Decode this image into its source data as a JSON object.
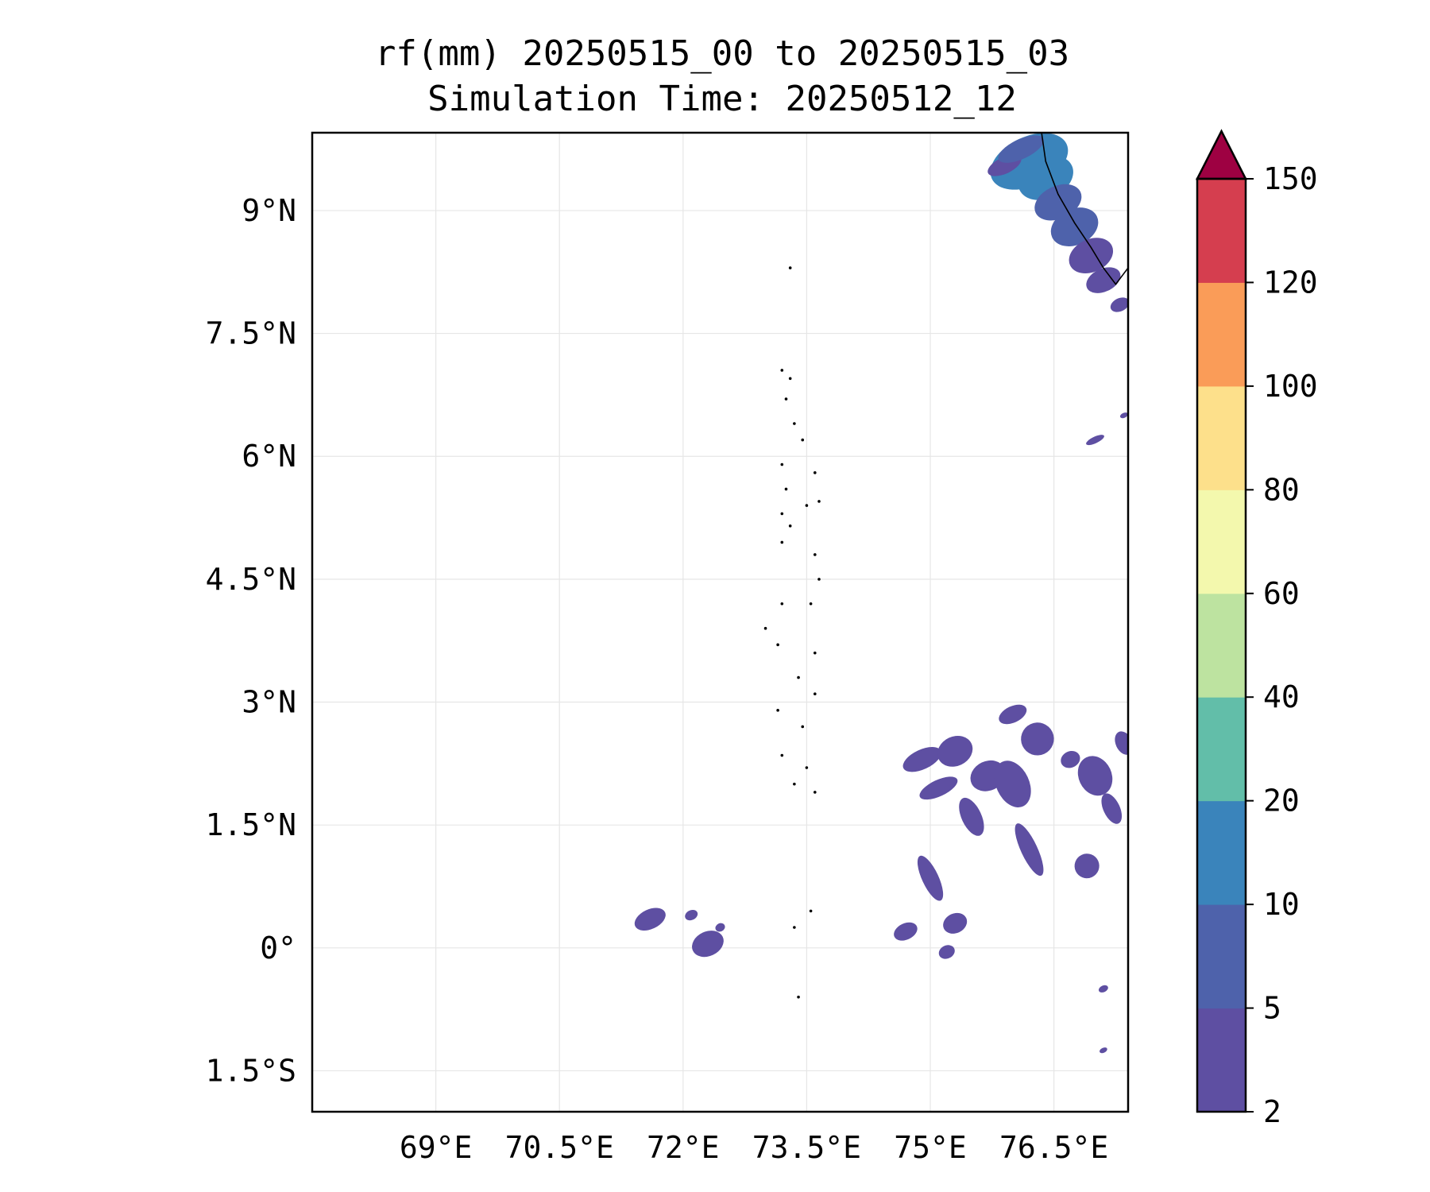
{
  "title": {
    "line1": "rf(mm) 20250515_00 to 20250515_03",
    "line2": "Simulation Time: 20250512_12"
  },
  "map": {
    "lon_range": [
      67.5,
      77.4
    ],
    "lat_range": [
      -2.0,
      9.95
    ],
    "x_ticks": [
      {
        "value": 69.0,
        "label": "69°E"
      },
      {
        "value": 70.5,
        "label": "70.5°E"
      },
      {
        "value": 72.0,
        "label": "72°E"
      },
      {
        "value": 73.5,
        "label": "73.5°E"
      },
      {
        "value": 75.0,
        "label": "75°E"
      },
      {
        "value": 76.5,
        "label": "76.5°E"
      }
    ],
    "y_ticks": [
      {
        "value": 9.0,
        "label": "9°N"
      },
      {
        "value": 7.5,
        "label": "7.5°N"
      },
      {
        "value": 6.0,
        "label": "6°N"
      },
      {
        "value": 4.5,
        "label": "4.5°N"
      },
      {
        "value": 3.0,
        "label": "3°N"
      },
      {
        "value": 1.5,
        "label": "1.5°N"
      },
      {
        "value": 0.0,
        "label": "0°"
      },
      {
        "value": -1.5,
        "label": "1.5°S"
      }
    ],
    "grid": true
  },
  "colorbar": {
    "levels": [
      2,
      5,
      10,
      20,
      40,
      60,
      80,
      100,
      120,
      150
    ],
    "labels": [
      "2",
      "5",
      "10",
      "20",
      "40",
      "60",
      "80",
      "100",
      "120",
      "150"
    ],
    "colors": [
      "#5e4fa2",
      "#4e62ab",
      "#3a84bb",
      "#62bea9",
      "#bde3a0",
      "#f3f8ad",
      "#fde08b",
      "#fa9c58",
      "#d53e4f"
    ],
    "extend_color": "#9e0142"
  },
  "chart_data": {
    "type": "heatmap",
    "variable": "rf(mm)",
    "title": "rf(mm) 20250515_00 to 20250515_03",
    "subtitle": "Simulation Time: 20250512_12",
    "xlabel": "",
    "ylabel": "",
    "xlim": [
      67.5,
      77.4
    ],
    "ylim": [
      -2.0,
      9.95
    ],
    "rain_cells": [
      {
        "lon": 76.2,
        "lat": 9.6,
        "rx": 0.5,
        "ry": 0.3,
        "level": 2
      },
      {
        "lon": 76.4,
        "lat": 9.4,
        "rx": 0.35,
        "ry": 0.25,
        "level": 2
      },
      {
        "lon": 76.55,
        "lat": 9.1,
        "rx": 0.3,
        "ry": 0.2,
        "level": 1
      },
      {
        "lon": 76.75,
        "lat": 8.8,
        "rx": 0.3,
        "ry": 0.22,
        "level": 1
      },
      {
        "lon": 76.95,
        "lat": 8.45,
        "rx": 0.28,
        "ry": 0.2,
        "level": 0
      },
      {
        "lon": 77.1,
        "lat": 8.15,
        "rx": 0.22,
        "ry": 0.14,
        "level": 0
      },
      {
        "lon": 77.3,
        "lat": 7.85,
        "rx": 0.12,
        "ry": 0.08,
        "level": 0
      },
      {
        "lon": 75.9,
        "lat": 9.55,
        "rx": 0.22,
        "ry": 0.1,
        "level": 0
      },
      {
        "lon": 76.1,
        "lat": 9.75,
        "rx": 0.3,
        "ry": 0.12,
        "level": 1
      },
      {
        "lon": 77.0,
        "lat": 6.2,
        "rx": 0.12,
        "ry": 0.04,
        "level": 0
      },
      {
        "lon": 77.35,
        "lat": 6.5,
        "rx": 0.05,
        "ry": 0.03,
        "level": 0
      },
      {
        "lon": 74.9,
        "lat": 2.3,
        "rx": 0.25,
        "ry": 0.12,
        "level": 0
      },
      {
        "lon": 75.3,
        "lat": 2.4,
        "rx": 0.22,
        "ry": 0.18,
        "level": 0
      },
      {
        "lon": 75.1,
        "lat": 1.95,
        "rx": 0.25,
        "ry": 0.1,
        "level": 0
      },
      {
        "lon": 75.7,
        "lat": 2.1,
        "rx": 0.22,
        "ry": 0.18,
        "level": 0
      },
      {
        "lon": 76.0,
        "lat": 2.0,
        "rx": 0.2,
        "ry": 0.3,
        "level": 0
      },
      {
        "lon": 76.3,
        "lat": 2.55,
        "rx": 0.2,
        "ry": 0.2,
        "level": 0
      },
      {
        "lon": 76.0,
        "lat": 2.85,
        "rx": 0.18,
        "ry": 0.1,
        "level": 0
      },
      {
        "lon": 76.7,
        "lat": 2.3,
        "rx": 0.12,
        "ry": 0.1,
        "level": 0
      },
      {
        "lon": 77.0,
        "lat": 2.1,
        "rx": 0.2,
        "ry": 0.25,
        "level": 0
      },
      {
        "lon": 77.35,
        "lat": 2.5,
        "rx": 0.1,
        "ry": 0.15,
        "level": 0
      },
      {
        "lon": 77.2,
        "lat": 1.7,
        "rx": 0.1,
        "ry": 0.2,
        "level": 0
      },
      {
        "lon": 75.5,
        "lat": 1.6,
        "rx": 0.12,
        "ry": 0.25,
        "level": 0
      },
      {
        "lon": 76.2,
        "lat": 1.2,
        "rx": 0.1,
        "ry": 0.35,
        "level": 0
      },
      {
        "lon": 76.9,
        "lat": 1.0,
        "rx": 0.15,
        "ry": 0.15,
        "level": 0
      },
      {
        "lon": 75.0,
        "lat": 0.85,
        "rx": 0.1,
        "ry": 0.3,
        "level": 0
      },
      {
        "lon": 74.7,
        "lat": 0.2,
        "rx": 0.15,
        "ry": 0.1,
        "level": 0
      },
      {
        "lon": 75.3,
        "lat": 0.3,
        "rx": 0.15,
        "ry": 0.12,
        "level": 0
      },
      {
        "lon": 75.2,
        "lat": -0.05,
        "rx": 0.1,
        "ry": 0.08,
        "level": 0
      },
      {
        "lon": 72.3,
        "lat": 0.05,
        "rx": 0.2,
        "ry": 0.15,
        "level": 0
      },
      {
        "lon": 71.6,
        "lat": 0.35,
        "rx": 0.2,
        "ry": 0.12,
        "level": 0
      },
      {
        "lon": 72.1,
        "lat": 0.4,
        "rx": 0.08,
        "ry": 0.06,
        "level": 0
      },
      {
        "lon": 72.45,
        "lat": 0.25,
        "rx": 0.06,
        "ry": 0.05,
        "level": 0
      },
      {
        "lon": 77.1,
        "lat": -0.5,
        "rx": 0.06,
        "ry": 0.04,
        "level": 0
      },
      {
        "lon": 77.1,
        "lat": -1.25,
        "rx": 0.05,
        "ry": 0.03,
        "level": 0
      }
    ],
    "coastline": [
      [
        76.35,
        9.95
      ],
      [
        76.4,
        9.6
      ],
      [
        76.55,
        9.2
      ],
      [
        76.75,
        8.85
      ],
      [
        76.95,
        8.55
      ],
      [
        77.1,
        8.3
      ],
      [
        77.25,
        8.1
      ],
      [
        77.4,
        8.3
      ]
    ],
    "atolls": [
      [
        73.3,
        8.3
      ],
      [
        73.2,
        7.05
      ],
      [
        73.3,
        6.95
      ],
      [
        73.25,
        6.7
      ],
      [
        73.35,
        6.4
      ],
      [
        73.45,
        6.2
      ],
      [
        73.2,
        5.9
      ],
      [
        73.25,
        5.6
      ],
      [
        73.6,
        5.8
      ],
      [
        73.65,
        5.45
      ],
      [
        73.5,
        5.4
      ],
      [
        73.2,
        5.3
      ],
      [
        73.3,
        5.15
      ],
      [
        73.2,
        4.95
      ],
      [
        73.6,
        4.8
      ],
      [
        73.65,
        4.5
      ],
      [
        73.55,
        4.2
      ],
      [
        73.2,
        4.2
      ],
      [
        73.0,
        3.9
      ],
      [
        73.15,
        3.7
      ],
      [
        73.6,
        3.6
      ],
      [
        73.4,
        3.3
      ],
      [
        73.6,
        3.1
      ],
      [
        73.15,
        2.9
      ],
      [
        73.45,
        2.7
      ],
      [
        73.2,
        2.35
      ],
      [
        73.5,
        2.2
      ],
      [
        73.35,
        2.0
      ],
      [
        73.6,
        1.9
      ],
      [
        73.55,
        0.45
      ],
      [
        73.35,
        0.25
      ],
      [
        73.4,
        -0.6
      ]
    ]
  }
}
